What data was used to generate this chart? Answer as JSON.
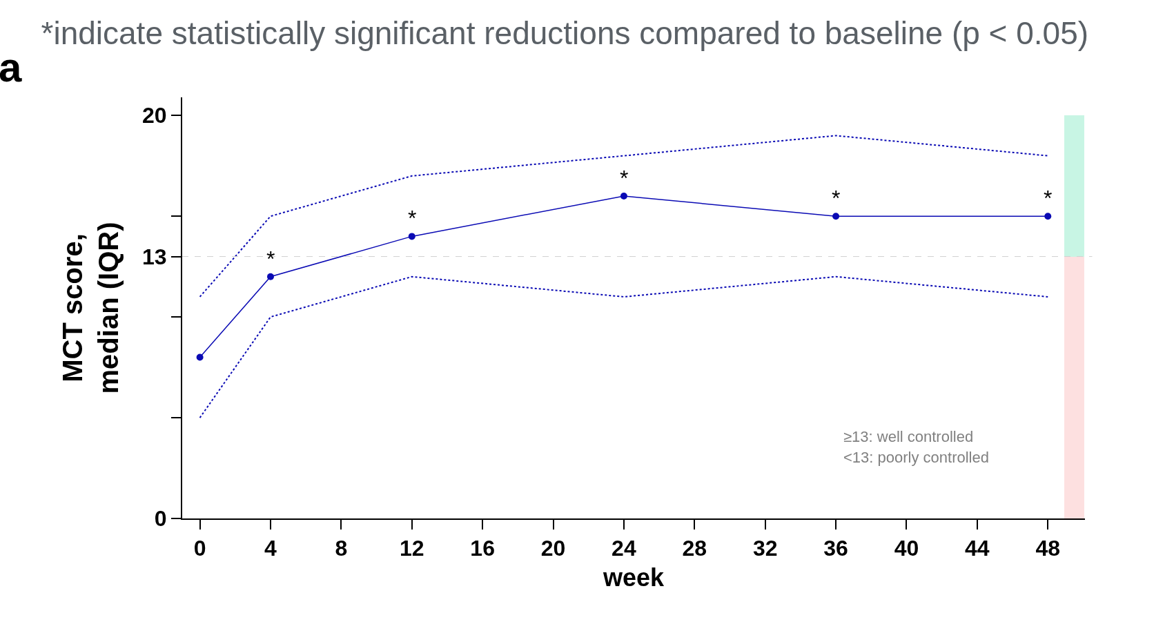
{
  "chart_data": {
    "type": "line",
    "title": "*indicate statistically significant reductions compared to baseline (p < 0.05)",
    "xlabel": "week",
    "ylabel": "MCT score,\nmedian (IQR)",
    "x": [
      0,
      4,
      12,
      24,
      36,
      48
    ],
    "series": [
      {
        "color": "#0a0ab4",
        "values": [
          8,
          12,
          14,
          16,
          15,
          15
        ]
      },
      {
        "color": "#0a0ab4",
        "values": [
          5,
          10,
          12,
          11,
          12,
          11
        ],
        "line_style": "dotted",
        "marker": "none"
      },
      {
        "color": "#0a0ab4",
        "values": [
          11,
          15,
          17,
          18,
          19,
          18
        ],
        "line_style": "dotted",
        "marker": "none"
      },
      {
        "type": "bar",
        "x": [
          49.5
        ],
        "color": "#fde0e0",
        "values": [
          13
        ]
      },
      {
        "type": "bar",
        "x": [
          49.5
        ],
        "color": "#c8f5e4",
        "values": [
          7
        ]
      }
    ],
    "xlim": [
      -1,
      50.1
    ],
    "xticks": [
      0,
      4,
      8,
      12,
      16,
      20,
      24,
      28,
      32,
      36,
      40,
      44,
      48
    ],
    "ylim": [
      0,
      20.9
    ],
    "yticks": [
      0,
      {
        "value": 5,
        "label": null
      },
      {
        "value": 10,
        "label": null
      },
      13,
      {
        "value": 15,
        "label": null
      },
      20
    ],
    "ref_lines": [
      {
        "axis": "y",
        "value": 13,
        "label": null,
        "color": "#d0d0d0",
        "line_style": "dashed"
      }
    ],
    "stacked": true,
    "annotations": [
      {
        "text": "*",
        "x": 4,
        "y": 12
      },
      {
        "text": "*",
        "x": 12,
        "y": 14
      },
      {
        "text": "*",
        "x": 24,
        "y": 16
      },
      {
        "text": "*",
        "x": 36,
        "y": 15
      },
      {
        "text": "*",
        "x": 48,
        "y": 15
      },
      "a",
      "≥13: well controlled",
      "<13: poorly controlled"
    ],
    "marker": "circle",
    "line_style": "solid"
  }
}
